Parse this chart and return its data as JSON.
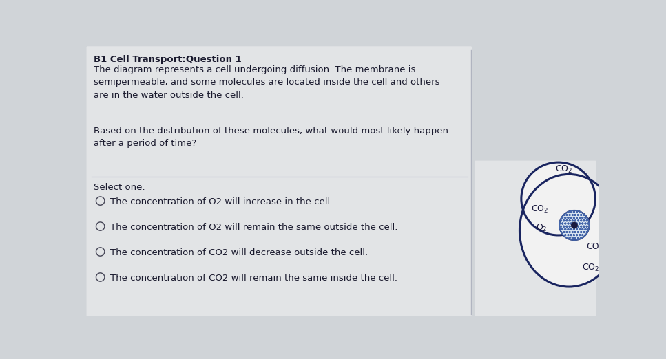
{
  "title": "B1 Cell Transport:Question 1",
  "paragraph1": "The diagram represents a cell undergoing diffusion. The membrane is\nsemipermeable, and some molecules are located inside the cell and others\nare in the water outside the cell.",
  "paragraph2": "Based on the distribution of these molecules, what would most likely happen\nafter a period of time?",
  "select_label": "Select one:",
  "options": [
    "The concentration of O2 will increase in the cell.",
    "The concentration of O2 will remain the same outside the cell.",
    "The concentration of CO2 will decrease outside the cell.",
    "The concentration of CO2 will remain the same inside the cell."
  ],
  "bg_color": "#d0d4d8",
  "panel_color": "#e2e4e6",
  "text_color": "#1a1a2e",
  "cell_fill": "#f2f2f2",
  "cell_edge": "#1a2560",
  "nucleus_fill": "#d8e4f0",
  "nucleus_edge": "#1a2560",
  "title_fontsize": 9.5,
  "body_fontsize": 9.5,
  "option_fontsize": 9.5
}
